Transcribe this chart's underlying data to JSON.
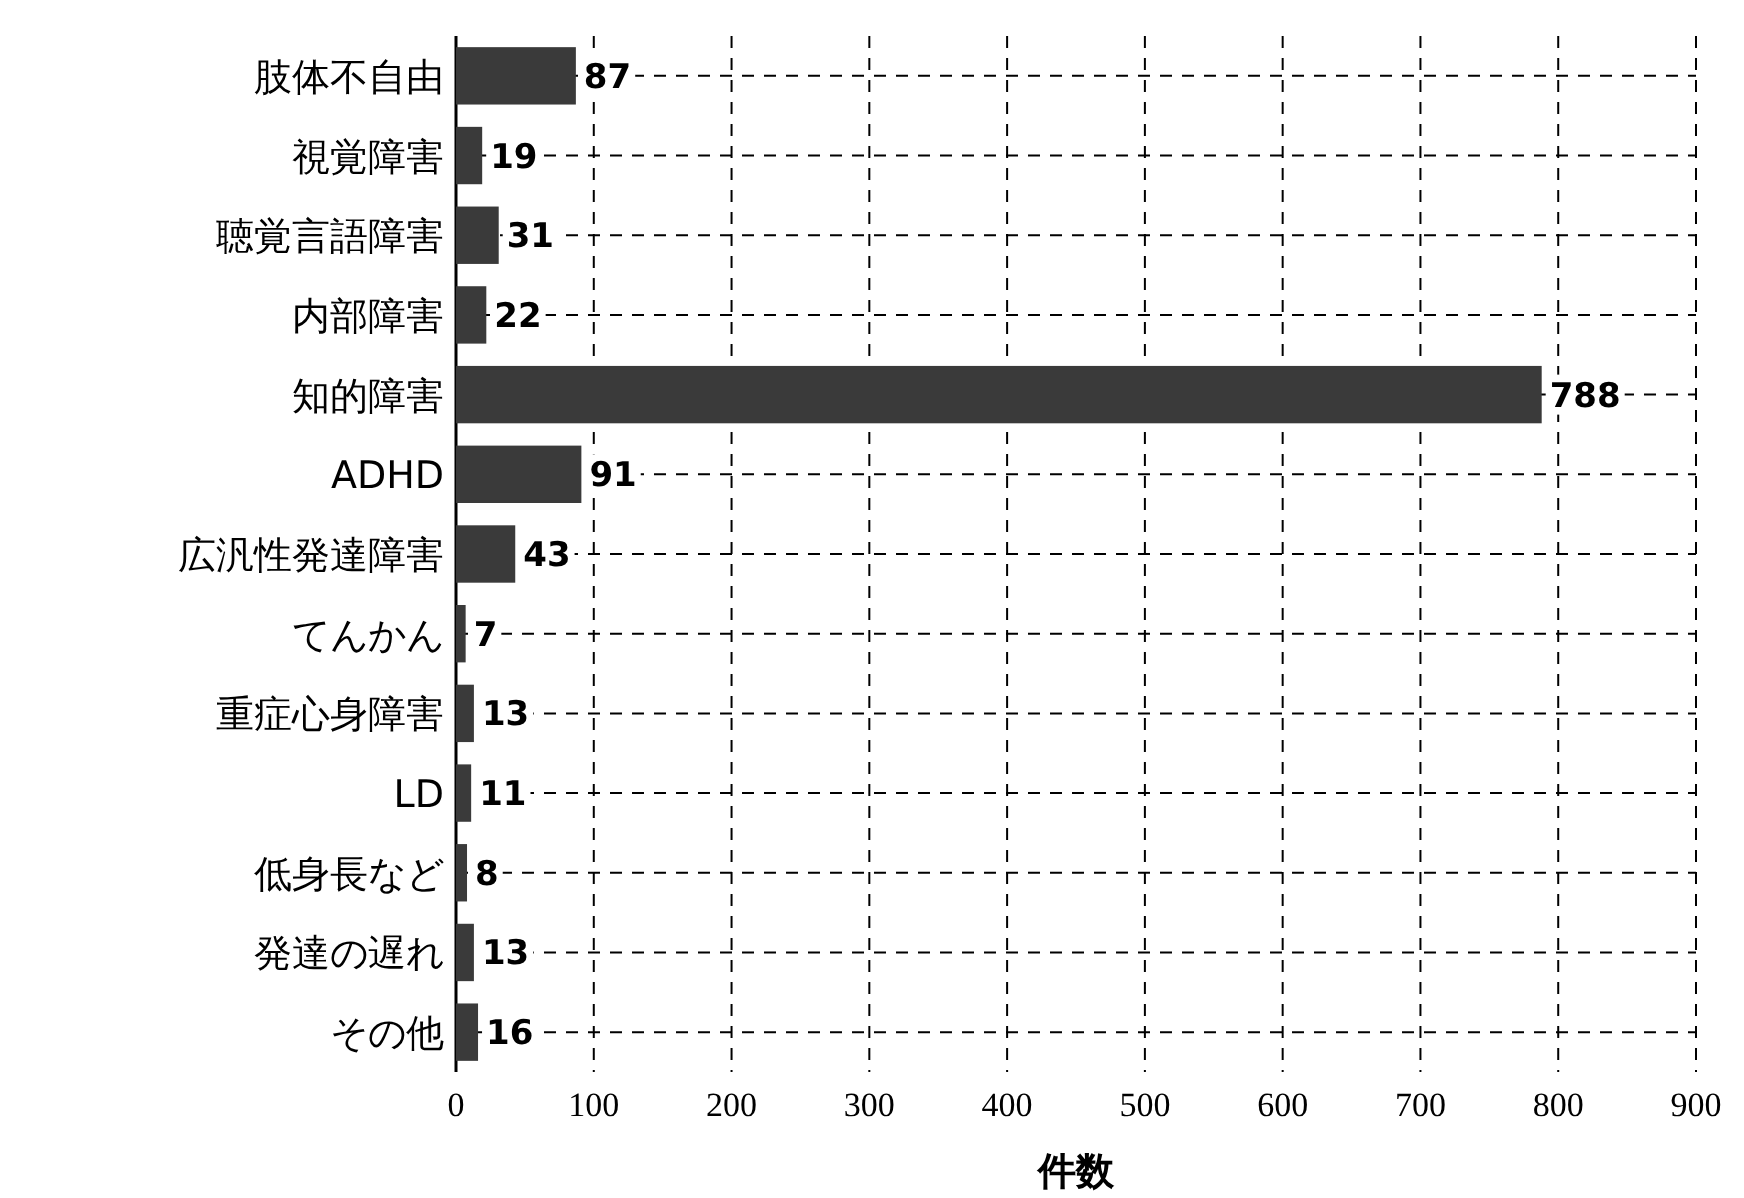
{
  "chart_data": {
    "type": "bar",
    "orientation": "horizontal",
    "categories": [
      "肢体不自由",
      "視覚障害",
      "聴覚言語障害",
      "内部障害",
      "知的障害",
      "ADHD",
      "広汎性発達障害",
      "てんかん",
      "重症心身障害",
      "LD",
      "低身長など",
      "発達の遅れ",
      "その他"
    ],
    "values": [
      87,
      19,
      31,
      22,
      788,
      91,
      43,
      7,
      13,
      11,
      8,
      13,
      16
    ],
    "color": "#3a3a3a",
    "data_labels": true,
    "grid": true,
    "xlim": [
      0,
      900
    ],
    "xticks": [
      0,
      100,
      200,
      300,
      400,
      500,
      600,
      700,
      800,
      900
    ],
    "xlabel": "件数"
  }
}
